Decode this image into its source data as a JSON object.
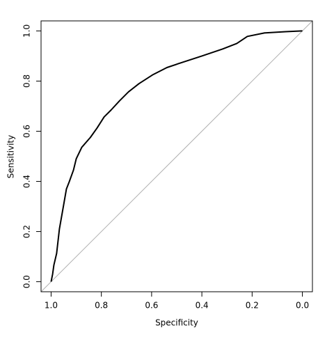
{
  "chart_data": {
    "type": "line",
    "xlabel": "Specificity",
    "ylabel": "Sensitivity",
    "x": [
      1.0,
      0.994,
      0.989,
      0.978,
      0.967,
      0.95,
      0.939,
      0.928,
      0.911,
      0.9,
      0.878,
      0.844,
      0.817,
      0.789,
      0.761,
      0.728,
      0.692,
      0.65,
      0.594,
      0.539,
      0.483,
      0.4,
      0.317,
      0.261,
      0.219,
      0.15,
      0.067,
      0.0
    ],
    "values": [
      0.0,
      0.03,
      0.066,
      0.113,
      0.21,
      0.307,
      0.37,
      0.398,
      0.445,
      0.49,
      0.536,
      0.575,
      0.613,
      0.657,
      0.685,
      0.721,
      0.757,
      0.79,
      0.826,
      0.854,
      0.873,
      0.9,
      0.928,
      0.95,
      0.978,
      0.992,
      0.997,
      1.0
    ],
    "color": "#000000",
    "xlim": [
      1.04,
      -0.04
    ],
    "ylim": [
      -0.04,
      1.04
    ],
    "xticks": [
      {
        "value": 1,
        "label": "1.0"
      },
      0.8,
      0.6,
      0.4,
      0.2,
      {
        "value": 0,
        "label": "0.0"
      }
    ],
    "yticks": [
      {
        "value": 0,
        "label": "0.0"
      },
      0.2,
      0.4,
      0.6,
      0.8,
      {
        "value": 1,
        "label": "1.0"
      }
    ],
    "reference_color": "#b0b0b0"
  }
}
